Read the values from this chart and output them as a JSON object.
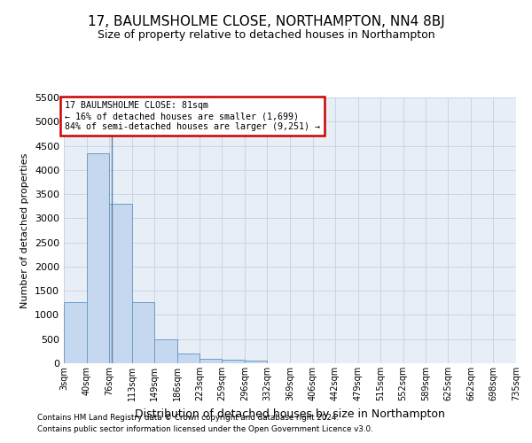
{
  "title": "17, BAULMSHOLME CLOSE, NORTHAMPTON, NN4 8BJ",
  "subtitle": "Size of property relative to detached houses in Northampton",
  "xlabel": "Distribution of detached houses by size in Northampton",
  "ylabel": "Number of detached properties",
  "property_size": 81,
  "annotation_line1": "17 BAULMSHOLME CLOSE: 81sqm",
  "annotation_line2": "← 16% of detached houses are smaller (1,699)",
  "annotation_line3": "84% of semi-detached houses are larger (9,251) →",
  "footnote1": "Contains HM Land Registry data © Crown copyright and database right 2024.",
  "footnote2": "Contains public sector information licensed under the Open Government Licence v3.0.",
  "bin_edges": [
    3,
    40,
    76,
    113,
    149,
    186,
    223,
    259,
    296,
    332,
    369,
    406,
    442,
    479,
    515,
    552,
    589,
    625,
    662,
    698,
    735
  ],
  "bin_counts": [
    1260,
    4350,
    3300,
    1260,
    490,
    210,
    90,
    65,
    55,
    0,
    0,
    0,
    0,
    0,
    0,
    0,
    0,
    0,
    0,
    0
  ],
  "bar_color": "#c5d8ef",
  "bar_edge_color": "#6e9dc8",
  "vline_color": "#5a7fa8",
  "annotation_box_edge": "#cc0000",
  "ylim_max": 5500,
  "yticks": [
    0,
    500,
    1000,
    1500,
    2000,
    2500,
    3000,
    3500,
    4000,
    4500,
    5000,
    5500
  ],
  "grid_color": "#c8d4e8",
  "bg_color": "#e8eef6",
  "title_fontsize": 11,
  "subtitle_fontsize": 9,
  "ylabel_fontsize": 8,
  "xlabel_fontsize": 9
}
